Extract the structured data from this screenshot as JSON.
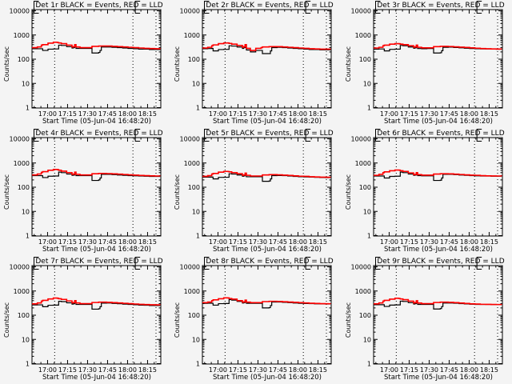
{
  "chart_data": {
    "type": "line",
    "layout": "3x3 grid",
    "y_scale": "log",
    "ylim": [
      1,
      12000
    ],
    "ylabel": "Counts/sec",
    "xlabel": "Start Time (05-Jun-04 16:48:20)",
    "x_units": "minutes since 16:48:20",
    "xlim": [
      0,
      96.6
    ],
    "x_tick_labels": [
      "17:00",
      "17:15",
      "17:30",
      "17:45",
      "18:00",
      "18:15"
    ],
    "x_tick_values": [
      11.67,
      26.67,
      41.67,
      56.67,
      71.67,
      86.67
    ],
    "y_tick_labels": [
      "1",
      "10",
      "100",
      "1000",
      "10000"
    ],
    "y_tick_values": [
      1,
      10,
      100,
      1000,
      10000
    ],
    "dotted_markers": [
      17.0,
      75.7,
      93.0
    ],
    "bracket_markers": [
      1.5,
      77.5
    ],
    "series_colors": {
      "events": "#000000",
      "lld": "#ff0000"
    },
    "x": [
      0,
      4,
      7,
      8,
      12,
      16,
      19,
      20,
      22,
      26,
      30,
      31,
      32,
      33,
      36,
      40,
      44,
      45,
      50,
      51,
      52,
      56,
      60,
      64,
      68,
      72,
      76,
      80,
      84,
      88,
      92,
      96
    ],
    "panels": [
      {
        "title": "Det 1r BLACK = Events, RED = LLD",
        "series": [
          {
            "name": "Events",
            "values": [
              270,
              270,
              270,
              230,
              260,
              265,
              265,
              380,
              370,
              330,
              290,
              300,
              330,
              280,
              280,
              280,
              280,
              180,
              190,
              230,
              320,
              320,
              310,
              300,
              290,
              280,
              270,
              260,
              260,
              250,
              250,
              245
            ]
          },
          {
            "name": "LLD",
            "values": [
              300,
              320,
              380,
              400,
              460,
              500,
              490,
              470,
              440,
              380,
              320,
              330,
              400,
              320,
              300,
              300,
              300,
              340,
              350,
              350,
              350,
              350,
              340,
              330,
              320,
              310,
              300,
              290,
              280,
              275,
              270,
              265
            ]
          }
        ]
      },
      {
        "title": "Det 2r BLACK = Events, RED = LLD",
        "series": [
          {
            "name": "Events",
            "values": [
              270,
              275,
              280,
              220,
              250,
              255,
              255,
              360,
              350,
              320,
              280,
              300,
              310,
              240,
              200,
              230,
              230,
              170,
              170,
              220,
              300,
              310,
              300,
              290,
              280,
              270,
              260,
              250,
              250,
              245,
              245,
              240
            ]
          },
          {
            "name": "LLD",
            "values": [
              290,
              310,
              360,
              390,
              440,
              470,
              470,
              450,
              420,
              370,
              310,
              330,
              400,
              280,
              230,
              280,
              300,
              320,
              330,
              330,
              330,
              330,
              320,
              310,
              300,
              290,
              280,
              270,
              265,
              260,
              260,
              258
            ]
          }
        ]
      },
      {
        "title": "Det 3r BLACK = Events, RED = LLD",
        "series": [
          {
            "name": "Events",
            "values": [
              260,
              265,
              265,
              220,
              255,
              260,
              260,
              370,
              360,
              320,
              285,
              295,
              320,
              275,
              270,
              275,
              275,
              180,
              185,
              225,
              310,
              315,
              305,
              295,
              285,
              275,
              270,
              265,
              265,
              260,
              258,
              255
            ]
          },
          {
            "name": "LLD",
            "values": [
              290,
              310,
              360,
              380,
              420,
              440,
              435,
              420,
              400,
              360,
              315,
              325,
              380,
              310,
              295,
              295,
              295,
              330,
              340,
              340,
              340,
              335,
              325,
              315,
              305,
              295,
              285,
              275,
              270,
              265,
              262,
              260
            ]
          }
        ]
      },
      {
        "title": "Det 4r BLACK = Events, RED = LLD",
        "series": [
          {
            "name": "Events",
            "values": [
              300,
              300,
              300,
              250,
              285,
              290,
              290,
              420,
              400,
              350,
              310,
              320,
              350,
              300,
              300,
              300,
              300,
              190,
              200,
              240,
              340,
              340,
              330,
              320,
              310,
              300,
              295,
              290,
              285,
              280,
              280,
              278
            ]
          },
          {
            "name": "LLD",
            "values": [
              320,
              350,
              410,
              440,
              500,
              540,
              530,
              500,
              460,
              400,
              340,
              350,
              420,
              340,
              320,
              320,
              320,
              360,
              370,
              370,
              370,
              365,
              355,
              345,
              335,
              325,
              315,
              305,
              300,
              295,
              290,
              288
            ]
          }
        ]
      },
      {
        "title": "Det 5r BLACK = Events, RED = LLD",
        "series": [
          {
            "name": "Events",
            "values": [
              260,
              262,
              262,
              220,
              255,
              258,
              258,
              360,
              350,
              320,
              285,
              295,
              320,
              270,
              270,
              270,
              270,
              175,
              180,
              220,
              300,
              305,
              300,
              290,
              280,
              270,
              265,
              260,
              255,
              250,
              248,
              245
            ]
          },
          {
            "name": "LLD",
            "values": [
              280,
              300,
              350,
              370,
              420,
              450,
              445,
              430,
              400,
              360,
              310,
              320,
              380,
              310,
              290,
              290,
              290,
              320,
              330,
              330,
              330,
              325,
              315,
              305,
              295,
              285,
              280,
              270,
              265,
              260,
              258,
              256
            ]
          }
        ]
      },
      {
        "title": "Det 6r BLACK = Events, RED = LLD",
        "series": [
          {
            "name": "Events",
            "values": [
              290,
              290,
              290,
              240,
              280,
              285,
              285,
              420,
              400,
              350,
              310,
              320,
              345,
              300,
              295,
              295,
              295,
              190,
              195,
              240,
              340,
              340,
              330,
              320,
              310,
              300,
              295,
              290,
              290,
              285,
              285,
              283
            ]
          },
          {
            "name": "LLD",
            "values": [
              310,
              340,
              400,
              430,
              480,
              510,
              505,
              480,
              450,
              390,
              330,
              340,
              400,
              330,
              315,
              315,
              315,
              350,
              360,
              360,
              360,
              355,
              345,
              335,
              325,
              315,
              310,
              300,
              295,
              292,
              290,
              288
            ]
          }
        ]
      },
      {
        "title": "Det 7r BLACK = Events, RED = LLD",
        "series": [
          {
            "name": "Events",
            "values": [
              265,
              268,
              268,
              225,
              258,
              262,
              262,
              375,
              365,
              325,
              288,
              298,
              325,
              278,
              278,
              278,
              278,
              178,
              185,
              225,
              315,
              318,
              308,
              298,
              288,
              278,
              270,
              262,
              258,
              252,
              250,
              248
            ]
          },
          {
            "name": "LLD",
            "values": [
              295,
              320,
              380,
              410,
              470,
              510,
              500,
              480,
              450,
              390,
              325,
              335,
              400,
              320,
              300,
              300,
              300,
              335,
              345,
              345,
              345,
              340,
              330,
              320,
              310,
              300,
              290,
              280,
              275,
              270,
              268,
              265
            ]
          }
        ]
      },
      {
        "title": "Det 8r BLACK = Events, RED = LLD",
        "series": [
          {
            "name": "Events",
            "values": [
              310,
              312,
              312,
              260,
              300,
              305,
              305,
              440,
              420,
              370,
              320,
              330,
              360,
              310,
              310,
              310,
              310,
              200,
              205,
              250,
              350,
              350,
              340,
              330,
              320,
              310,
              305,
              300,
              295,
              292,
              290,
              288
            ]
          },
          {
            "name": "LLD",
            "values": [
              330,
              350,
              400,
              430,
              480,
              520,
              515,
              490,
              460,
              400,
              345,
              355,
              420,
              345,
              330,
              330,
              330,
              365,
              375,
              375,
              375,
              370,
              360,
              350,
              340,
              330,
              320,
              312,
              305,
              300,
              298,
              296
            ]
          }
        ]
      },
      {
        "title": "Det 9r BLACK = Events, RED = LLD",
        "series": [
          {
            "name": "Events",
            "values": [
              270,
              272,
              272,
              230,
              262,
              266,
              266,
              380,
              370,
              330,
              290,
              300,
              325,
              280,
              280,
              280,
              280,
              180,
              188,
              228,
              318,
              320,
              312,
              302,
              292,
              285,
              280,
              278,
              278,
              276,
              276,
              275
            ]
          },
          {
            "name": "LLD",
            "values": [
              295,
              320,
              380,
              410,
              460,
              500,
              490,
              470,
              440,
              380,
              320,
              332,
              395,
              318,
              300,
              300,
              300,
              335,
              345,
              345,
              345,
              340,
              330,
              318,
              305,
              295,
              288,
              282,
              280,
              278,
              277,
              276
            ]
          }
        ]
      }
    ]
  }
}
